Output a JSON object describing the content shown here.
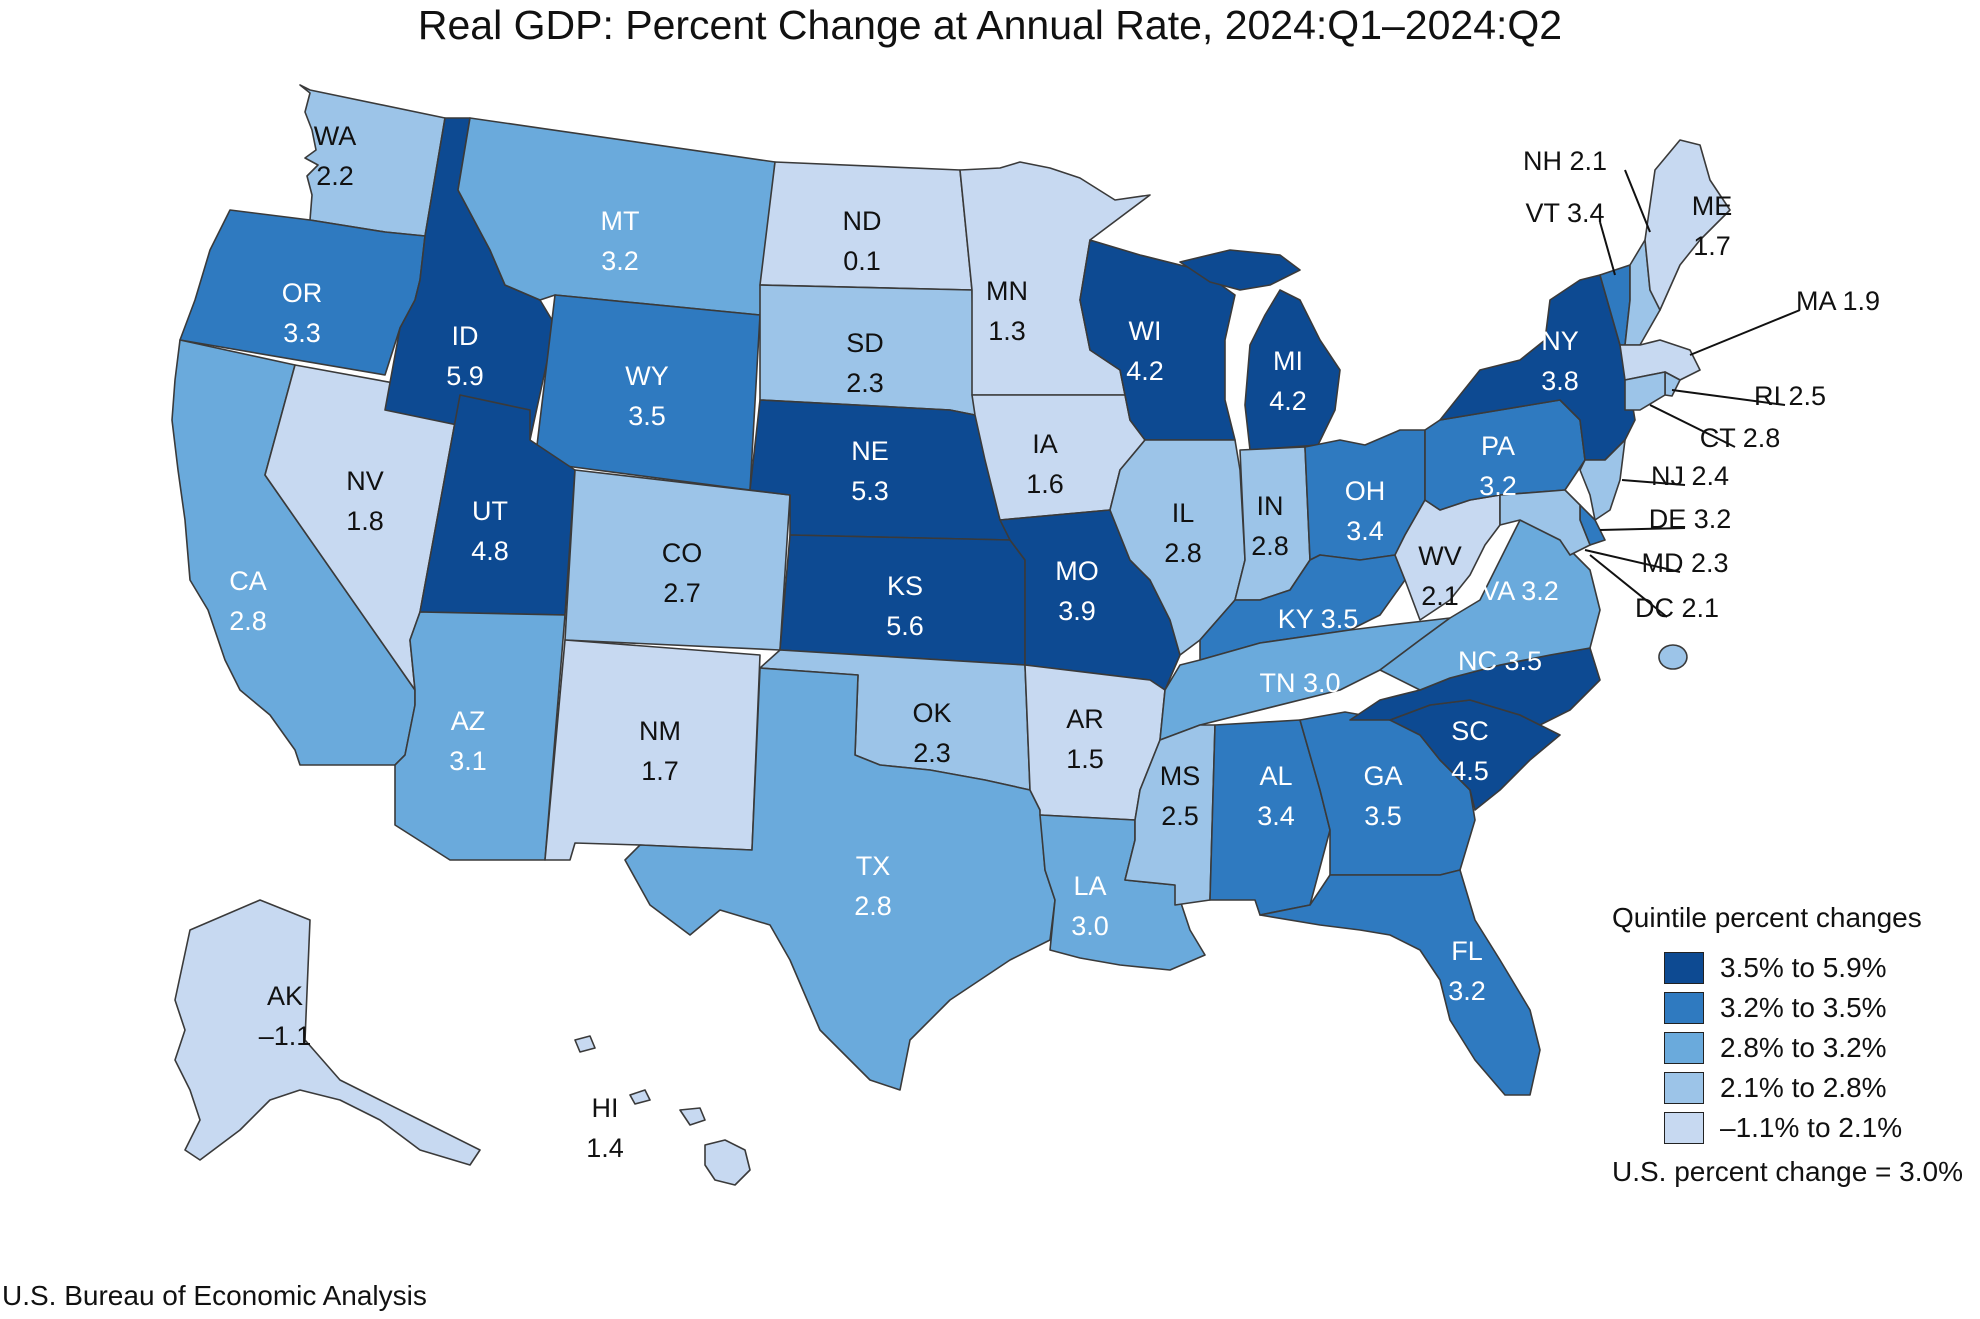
{
  "title": "Real GDP: Percent Change at Annual Rate, 2024:Q1–2024:Q2",
  "source": "U.S. Bureau of Economic Analysis",
  "legend": {
    "title": "Quintile percent changes",
    "bins": [
      {
        "label": "3.5% to 5.9%",
        "color": "#0d4a92"
      },
      {
        "label": "3.2% to 3.5%",
        "color": "#2f7ac0"
      },
      {
        "label": "2.8% to 3.2%",
        "color": "#6aaadc"
      },
      {
        "label": "2.1% to 2.8%",
        "color": "#9cc4e8"
      },
      {
        "label": "–1.1% to 2.1%",
        "color": "#c7d9f1"
      }
    ],
    "us_note": "U.S. percent change = 3.0%"
  },
  "states": [
    {
      "abbr": "WA",
      "value": "2.2",
      "bin": 3
    },
    {
      "abbr": "OR",
      "value": "3.3",
      "bin": 1
    },
    {
      "abbr": "CA",
      "value": "2.8",
      "bin": 2
    },
    {
      "abbr": "NV",
      "value": "1.8",
      "bin": 4
    },
    {
      "abbr": "ID",
      "value": "5.9",
      "bin": 0
    },
    {
      "abbr": "MT",
      "value": "3.2",
      "bin": 2
    },
    {
      "abbr": "WY",
      "value": "3.5",
      "bin": 1
    },
    {
      "abbr": "UT",
      "value": "4.8",
      "bin": 0
    },
    {
      "abbr": "AZ",
      "value": "3.1",
      "bin": 2
    },
    {
      "abbr": "CO",
      "value": "2.7",
      "bin": 3
    },
    {
      "abbr": "NM",
      "value": "1.7",
      "bin": 4
    },
    {
      "abbr": "ND",
      "value": "0.1",
      "bin": 4
    },
    {
      "abbr": "SD",
      "value": "2.3",
      "bin": 3
    },
    {
      "abbr": "NE",
      "value": "5.3",
      "bin": 0
    },
    {
      "abbr": "KS",
      "value": "5.6",
      "bin": 0
    },
    {
      "abbr": "OK",
      "value": "2.3",
      "bin": 3
    },
    {
      "abbr": "TX",
      "value": "2.8",
      "bin": 2
    },
    {
      "abbr": "MN",
      "value": "1.3",
      "bin": 4
    },
    {
      "abbr": "IA",
      "value": "1.6",
      "bin": 4
    },
    {
      "abbr": "MO",
      "value": "3.9",
      "bin": 0
    },
    {
      "abbr": "AR",
      "value": "1.5",
      "bin": 4
    },
    {
      "abbr": "LA",
      "value": "3.0",
      "bin": 2
    },
    {
      "abbr": "WI",
      "value": "4.2",
      "bin": 0
    },
    {
      "abbr": "IL",
      "value": "2.8",
      "bin": 3
    },
    {
      "abbr": "MI",
      "value": "4.2",
      "bin": 0
    },
    {
      "abbr": "IN",
      "value": "2.8",
      "bin": 3
    },
    {
      "abbr": "OH",
      "value": "3.4",
      "bin": 1
    },
    {
      "abbr": "KY",
      "value": "3.5",
      "bin": 1
    },
    {
      "abbr": "TN",
      "value": "3.0",
      "bin": 2
    },
    {
      "abbr": "MS",
      "value": "2.5",
      "bin": 3
    },
    {
      "abbr": "AL",
      "value": "3.4",
      "bin": 1
    },
    {
      "abbr": "GA",
      "value": "3.5",
      "bin": 1
    },
    {
      "abbr": "FL",
      "value": "3.2",
      "bin": 1
    },
    {
      "abbr": "SC",
      "value": "4.5",
      "bin": 0
    },
    {
      "abbr": "NC",
      "value": "3.5",
      "bin": 0
    },
    {
      "abbr": "VA",
      "value": "3.2",
      "bin": 2
    },
    {
      "abbr": "WV",
      "value": "2.1",
      "bin": 4
    },
    {
      "abbr": "PA",
      "value": "3.2",
      "bin": 1
    },
    {
      "abbr": "NY",
      "value": "3.8",
      "bin": 0
    },
    {
      "abbr": "VT",
      "value": "3.4",
      "bin": 1
    },
    {
      "abbr": "NH",
      "value": "2.1",
      "bin": 3
    },
    {
      "abbr": "ME",
      "value": "1.7",
      "bin": 4
    },
    {
      "abbr": "MA",
      "value": "1.9",
      "bin": 4
    },
    {
      "abbr": "RI",
      "value": "2.5",
      "bin": 3
    },
    {
      "abbr": "CT",
      "value": "2.8",
      "bin": 3
    },
    {
      "abbr": "NJ",
      "value": "2.4",
      "bin": 3
    },
    {
      "abbr": "DE",
      "value": "3.2",
      "bin": 1
    },
    {
      "abbr": "MD",
      "value": "2.3",
      "bin": 3
    },
    {
      "abbr": "DC",
      "value": "2.1",
      "bin": 3
    },
    {
      "abbr": "AK",
      "value": "–1.1",
      "bin": 4
    },
    {
      "abbr": "HI",
      "value": "1.4",
      "bin": 4
    }
  ]
}
